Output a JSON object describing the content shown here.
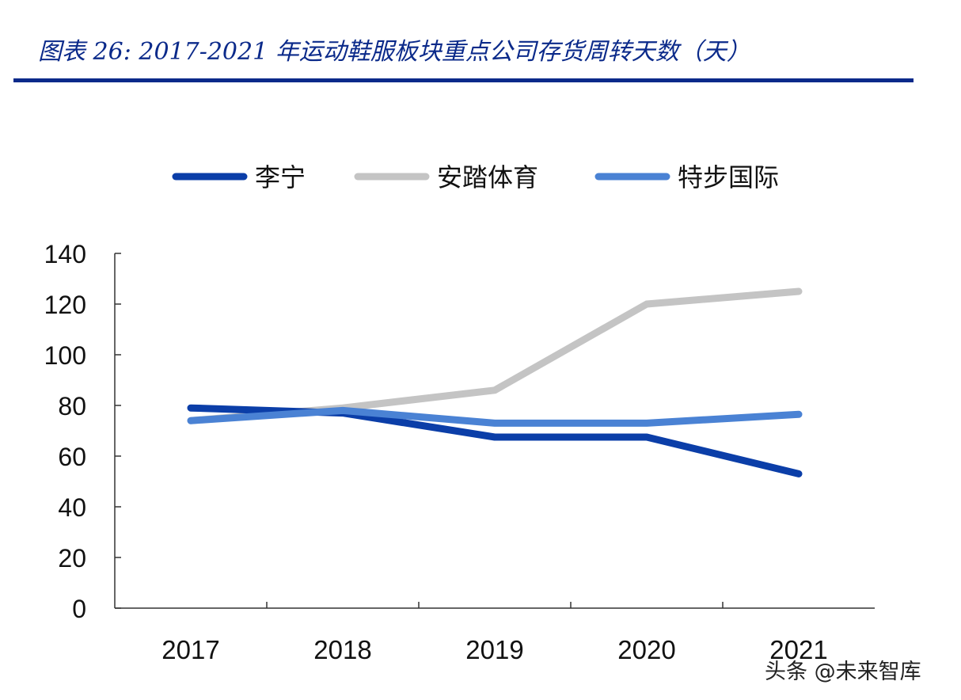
{
  "header": {
    "title": "图表 26:  2017-2021 年运动鞋服板块重点公司存货周转天数（天）"
  },
  "watermark": "头条 @未来智库",
  "chart_data": {
    "type": "line",
    "title": "图表 26:  2017-2021 年运动鞋服板块重点公司存货周转天数（天）",
    "categories": [
      "2017",
      "2018",
      "2019",
      "2020",
      "2021"
    ],
    "series": [
      {
        "name": "李宁",
        "color": "#0b3ea8",
        "values": [
          79,
          77,
          67.5,
          67.5,
          53
        ]
      },
      {
        "name": "安踏体育",
        "color": "#c4c4c4",
        "values": [
          74,
          79,
          86,
          120,
          125
        ]
      },
      {
        "name": "特步国际",
        "color": "#4a82d4",
        "values": [
          74,
          78,
          73,
          73,
          76.5
        ]
      }
    ],
    "yticks": [
      "0",
      "20",
      "40",
      "60",
      "80",
      "100",
      "120",
      "140"
    ],
    "ylim": [
      0,
      140
    ],
    "grid": false,
    "legend": "top"
  }
}
